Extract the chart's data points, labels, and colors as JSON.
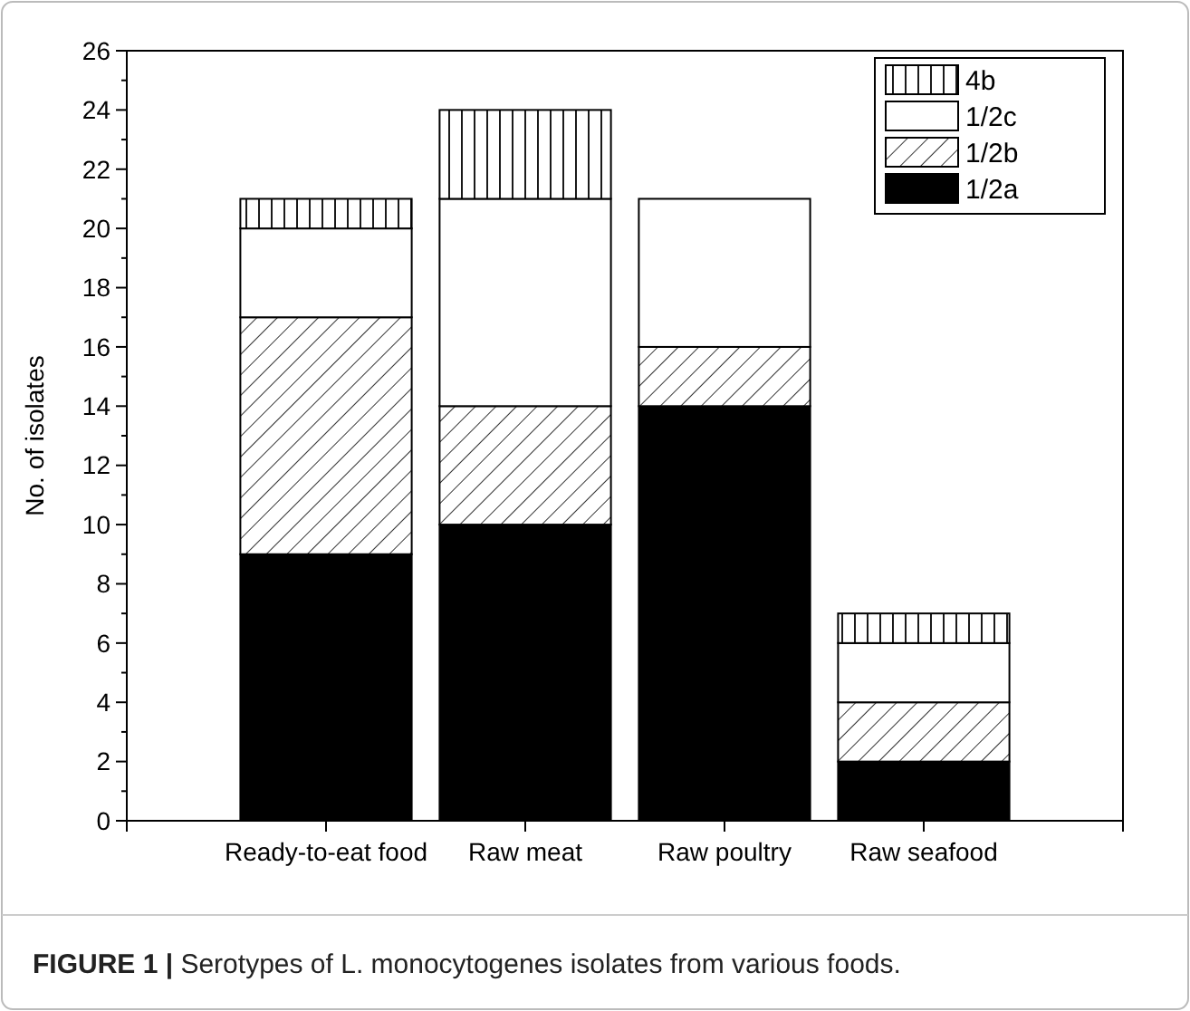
{
  "chart_data": {
    "type": "bar",
    "stacked": true,
    "ylabel": "No. of isolates",
    "categories": [
      "Ready-to-eat food",
      "Raw meat",
      "Raw poultry",
      "Raw seafood"
    ],
    "series": [
      {
        "name": "1/2a",
        "color": "#000000",
        "values": [
          9,
          10,
          14,
          2
        ]
      },
      {
        "name": "1/2b",
        "color": "#ffffff",
        "values": [
          8,
          4,
          2,
          2
        ]
      },
      {
        "name": "1/2c",
        "color": "#ffffff",
        "values": [
          3,
          7,
          5,
          2
        ]
      },
      {
        "name": "4b",
        "color": "#ffffff",
        "values": [
          1,
          3,
          0,
          1
        ]
      }
    ],
    "ylim": [
      0,
      26
    ],
    "yticks": [
      0,
      2,
      4,
      6,
      8,
      10,
      12,
      14,
      16,
      18,
      20,
      22,
      24,
      26
    ],
    "grid": false,
    "legend": "top right",
    "annotations": [
      "FIGURE 1 | Serotypes of L. monocytogenes isolates from various foods."
    ]
  }
}
